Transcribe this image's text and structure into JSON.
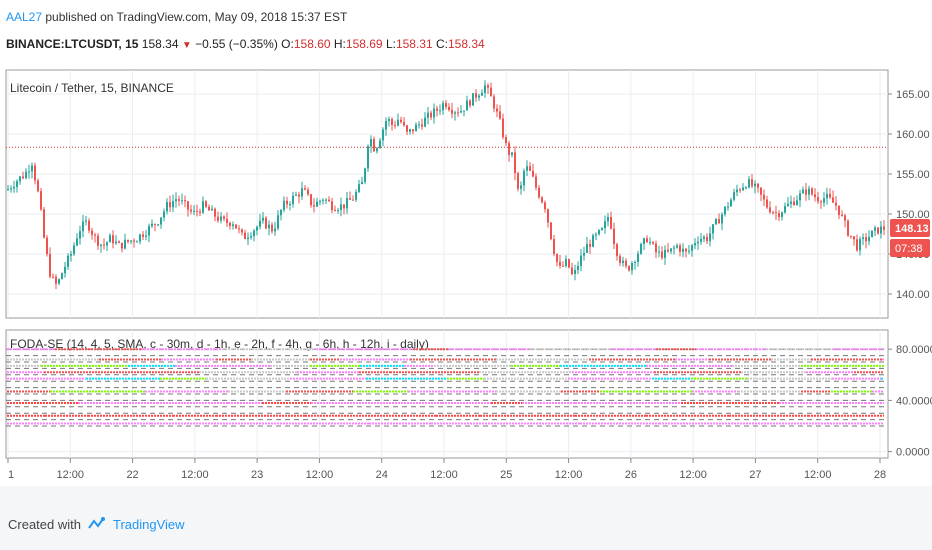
{
  "header": {
    "author": "AAL27",
    "published": "published on TradingView.com, May 09, 2018 15:37 EST",
    "symbol": "BINANCE:LTCUSDT, 15",
    "last": "158.34",
    "change": "−0.55 (−0.35%)",
    "o_label": "O:",
    "o_val": "158.60",
    "h_label": "H:",
    "h_val": "158.69",
    "l_label": "L:",
    "l_val": "158.31",
    "c_label": "C:",
    "c_val": "158.34"
  },
  "footer": {
    "created": "Created with",
    "brand": "TradingView"
  },
  "colors": {
    "up": "#26a69a",
    "down": "#ef5350",
    "grid": "#e9eef2",
    "axis": "#555555",
    "priceLine": "#d32f2f",
    "badge": "#ef5350"
  },
  "chart_data": [
    {
      "type": "candlestick",
      "title": "Litecoin / Tether, 15, BINANCE",
      "ylim": [
        137,
        168
      ],
      "yticks": [
        "140.00",
        "145.00",
        "150.00",
        "155.00",
        "160.00",
        "165.00"
      ],
      "ytick_values": [
        140,
        145,
        150,
        155,
        160,
        165
      ],
      "xticks": [
        "1",
        "12:00",
        "22",
        "12:00",
        "23",
        "12:00",
        "24",
        "12:00",
        "25",
        "12:00",
        "26",
        "12:00",
        "27",
        "12:00",
        "28"
      ],
      "price_line": 158.34,
      "badges": [
        "148.13",
        "07:38"
      ],
      "close_path": [
        [
          0,
          153
        ],
        [
          8,
          154
        ],
        [
          18,
          155
        ],
        [
          25,
          156.5
        ],
        [
          32,
          152
        ],
        [
          38,
          146
        ],
        [
          44,
          142
        ],
        [
          50,
          141
        ],
        [
          56,
          143
        ],
        [
          64,
          145
        ],
        [
          72,
          148
        ],
        [
          80,
          149
        ],
        [
          88,
          147
        ],
        [
          96,
          146
        ],
        [
          104,
          147
        ],
        [
          112,
          146
        ],
        [
          120,
          146.5
        ],
        [
          130,
          147
        ],
        [
          140,
          148
        ],
        [
          150,
          149
        ],
        [
          160,
          151
        ],
        [
          170,
          152
        ],
        [
          178,
          151
        ],
        [
          186,
          150
        ],
        [
          196,
          151
        ],
        [
          206,
          150
        ],
        [
          216,
          149
        ],
        [
          226,
          149
        ],
        [
          236,
          147
        ],
        [
          246,
          148
        ],
        [
          256,
          149
        ],
        [
          266,
          148
        ],
        [
          276,
          151
        ],
        [
          286,
          152
        ],
        [
          296,
          153
        ],
        [
          306,
          151
        ],
        [
          316,
          152
        ],
        [
          326,
          151
        ],
        [
          336,
          151
        ],
        [
          346,
          152
        ],
        [
          356,
          154
        ],
        [
          362,
          160
        ],
        [
          368,
          158
        ],
        [
          374,
          160
        ],
        [
          380,
          162
        ],
        [
          386,
          161
        ],
        [
          392,
          162
        ],
        [
          400,
          160
        ],
        [
          410,
          161
        ],
        [
          420,
          162
        ],
        [
          430,
          163
        ],
        [
          438,
          164
        ],
        [
          446,
          163
        ],
        [
          454,
          163
        ],
        [
          462,
          164
        ],
        [
          470,
          165
        ],
        [
          478,
          166
        ],
        [
          486,
          164
        ],
        [
          494,
          161
        ],
        [
          500,
          158
        ],
        [
          506,
          157
        ],
        [
          512,
          152
        ],
        [
          518,
          156
        ],
        [
          524,
          155
        ],
        [
          530,
          153
        ],
        [
          538,
          151
        ],
        [
          546,
          146
        ],
        [
          552,
          143
        ],
        [
          560,
          144
        ],
        [
          566,
          142
        ],
        [
          572,
          144
        ],
        [
          580,
          146
        ],
        [
          588,
          147
        ],
        [
          596,
          148
        ],
        [
          602,
          150
        ],
        [
          608,
          146
        ],
        [
          614,
          144
        ],
        [
          620,
          143
        ],
        [
          630,
          145
        ],
        [
          640,
          147
        ],
        [
          650,
          145
        ],
        [
          660,
          145
        ],
        [
          670,
          146
        ],
        [
          680,
          145
        ],
        [
          690,
          147
        ],
        [
          700,
          147
        ],
        [
          710,
          149
        ],
        [
          720,
          151
        ],
        [
          730,
          153
        ],
        [
          740,
          154
        ],
        [
          750,
          153
        ],
        [
          760,
          151
        ],
        [
          770,
          150
        ],
        [
          780,
          151
        ],
        [
          790,
          152
        ],
        [
          800,
          153
        ],
        [
          810,
          152
        ],
        [
          820,
          152
        ],
        [
          830,
          151
        ],
        [
          840,
          148
        ],
        [
          850,
          146
        ],
        [
          860,
          147
        ],
        [
          870,
          148
        ],
        [
          880,
          148.3
        ]
      ]
    },
    {
      "type": "heatmap",
      "title": "FODA-SE (14, 4, 5, SMA, c - 30m, d - 1h, e - 2h, f - 4h, g - 6h, h - 12h, i - daily)",
      "ylim": [
        -5,
        95
      ],
      "yticks": [
        "0.0000",
        "40.0000",
        "80.0000"
      ],
      "ytick_values": [
        0,
        40,
        80
      ],
      "dashed_levels": [
        80,
        75,
        70,
        65,
        60,
        55,
        50,
        45,
        40,
        35,
        30,
        25,
        20
      ]
    }
  ]
}
